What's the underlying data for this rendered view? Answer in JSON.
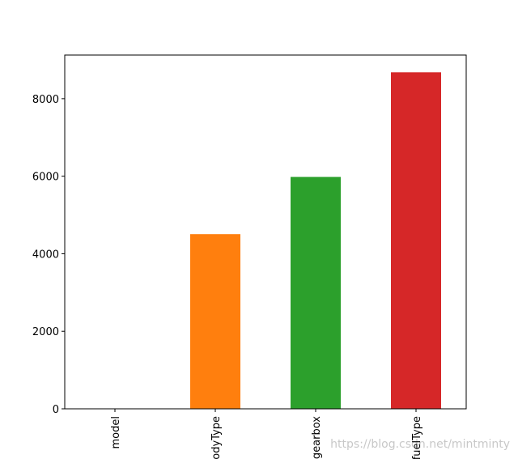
{
  "chart_data": {
    "type": "bar",
    "categories": [
      "model",
      "bodyType",
      "gearbox",
      "fuelType"
    ],
    "values": [
      1,
      4506,
      5981,
      8680
    ],
    "colors": [
      "#1f77b4",
      "#ff7f0e",
      "#2ca02c",
      "#d62728"
    ],
    "ylim": [
      0,
      9125
    ],
    "yticks": [
      0,
      2000,
      4000,
      6000,
      8000
    ],
    "grid": false,
    "watermark": "https://blog.csdn.net/mintminty"
  }
}
